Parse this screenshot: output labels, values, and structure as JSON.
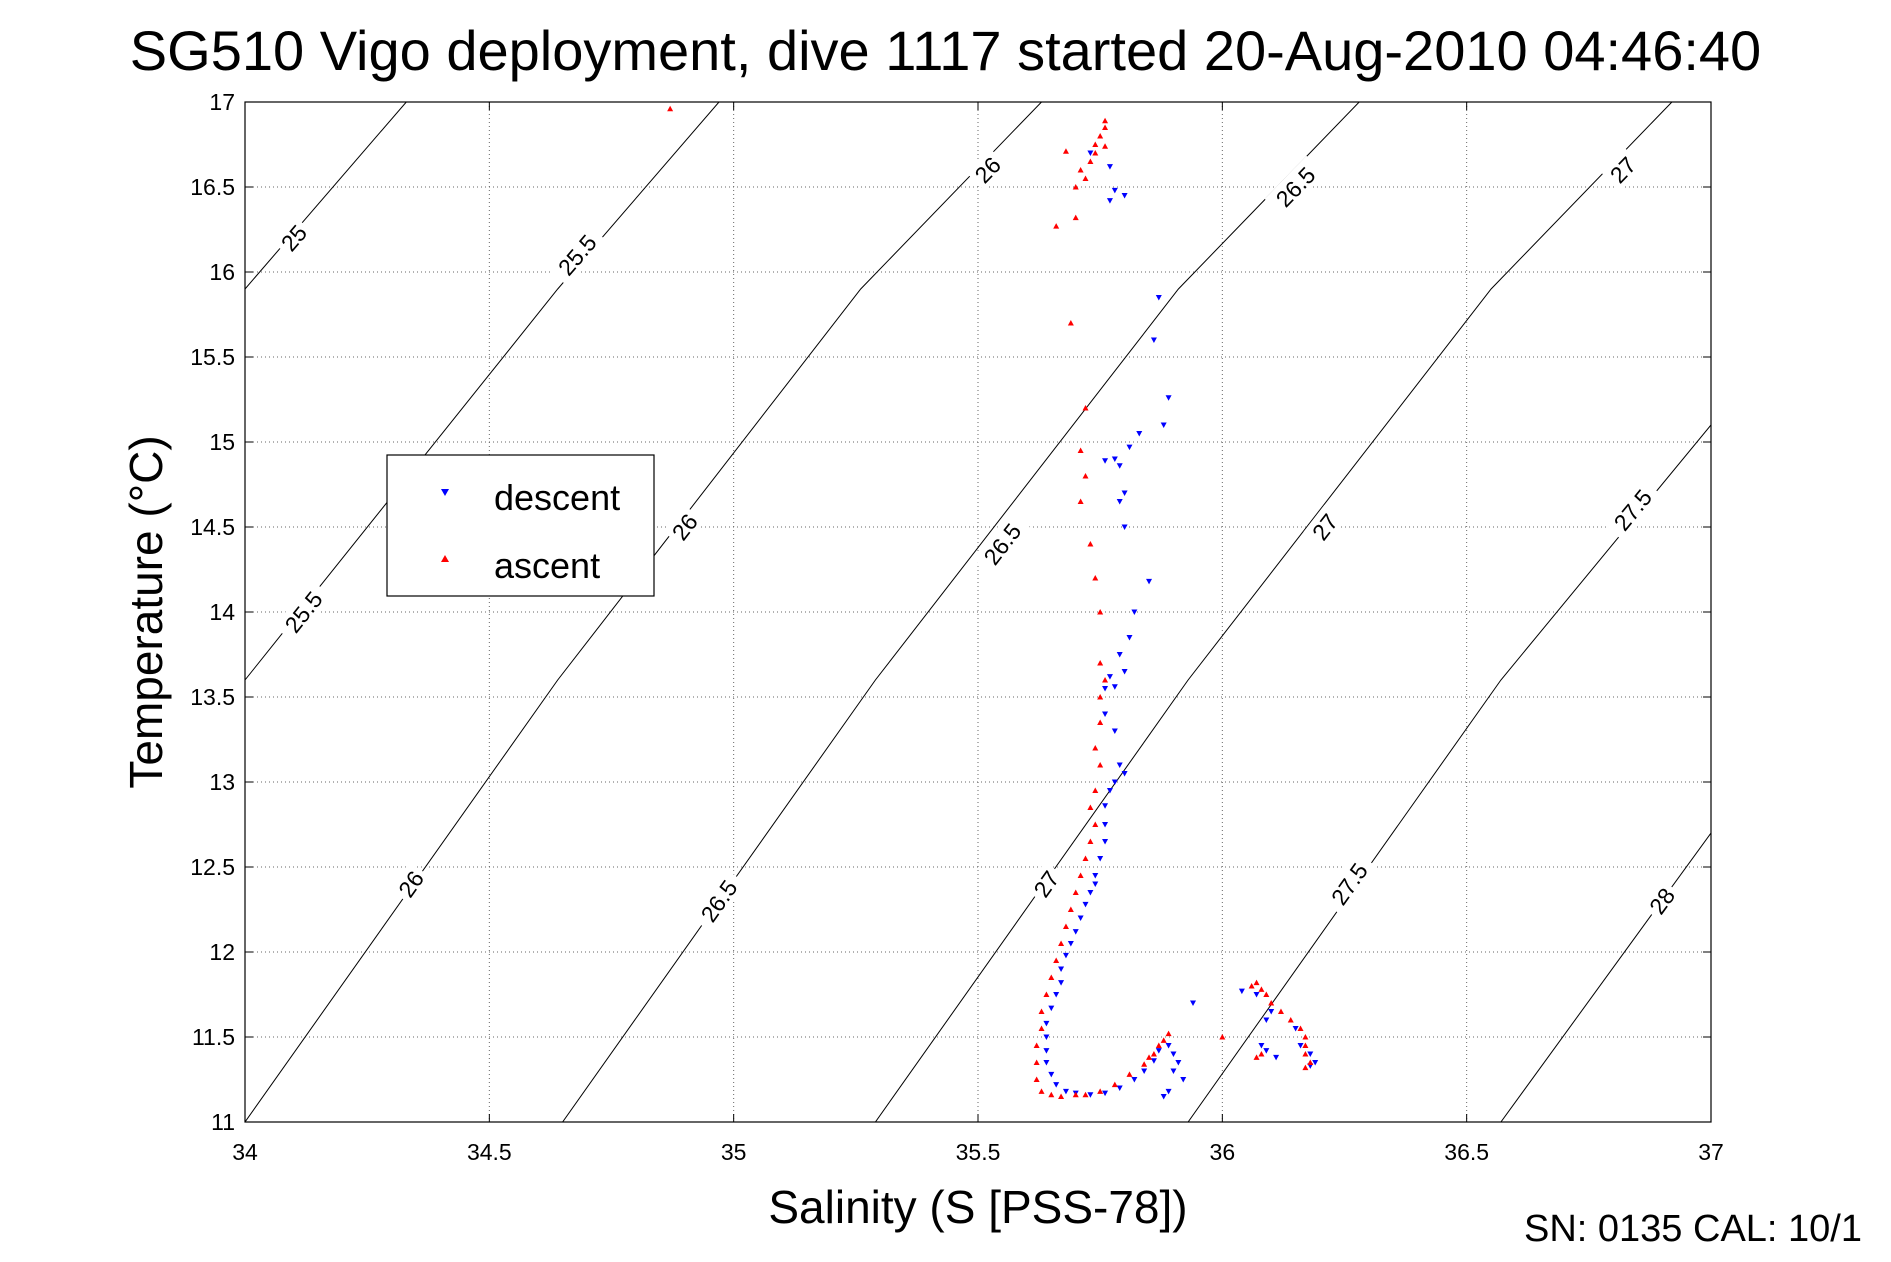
{
  "chart_data": {
    "type": "scatter",
    "title": "SG510 Vigo deployment, dive 1117 started 20-Aug-2010 04:46:40",
    "xlabel": "Salinity (S [PSS-78])",
    "ylabel": "Temperature (°C)",
    "xlim": [
      34,
      37
    ],
    "ylim": [
      11,
      17
    ],
    "x_ticks": [
      "34",
      "34.5",
      "35",
      "35.5",
      "36",
      "36.5",
      "37"
    ],
    "y_ticks": [
      "11",
      "11.5",
      "12",
      "12.5",
      "13",
      "13.5",
      "14",
      "14.5",
      "15",
      "15.5",
      "16",
      "16.5",
      "17"
    ],
    "grid": true,
    "legend_position": "left",
    "density_contours": [
      {
        "label": "25",
        "line": [
          [
            34.0,
            15.9
          ],
          [
            34.33,
            17.0
          ]
        ],
        "label_at": [
          34.1,
          16.2
        ]
      },
      {
        "label": "25.5",
        "line": [
          [
            34.0,
            13.6
          ],
          [
            34.64,
            15.9
          ],
          [
            34.97,
            17.0
          ]
        ],
        "label_at": [
          34.12,
          14.0
        ]
      },
      {
        "label": "25.5",
        "line": [
          [
            34.0,
            13.6
          ],
          [
            34.64,
            15.9
          ],
          [
            34.97,
            17.0
          ]
        ],
        "label_at": [
          34.68,
          16.1
        ]
      },
      {
        "label": "26",
        "line": [
          [
            34.0,
            11.0
          ],
          [
            34.64,
            13.6
          ],
          [
            35.26,
            15.9
          ],
          [
            35.63,
            17.0
          ]
        ],
        "label_at": [
          34.34,
          12.4
        ]
      },
      {
        "label": "26",
        "line": [
          [
            34.0,
            11.0
          ],
          [
            34.64,
            13.6
          ],
          [
            35.26,
            15.9
          ],
          [
            35.63,
            17.0
          ]
        ],
        "label_at": [
          34.9,
          14.5
        ]
      },
      {
        "label": "26",
        "line": [
          [
            34.0,
            11.0
          ],
          [
            34.64,
            13.6
          ],
          [
            35.26,
            15.9
          ],
          [
            35.63,
            17.0
          ]
        ],
        "label_at": [
          35.52,
          16.6
        ]
      },
      {
        "label": "26.5",
        "line": [
          [
            34.65,
            11.0
          ],
          [
            35.29,
            13.6
          ],
          [
            35.91,
            15.9
          ],
          [
            36.28,
            17.0
          ]
        ],
        "label_at": [
          34.97,
          12.3
        ]
      },
      {
        "label": "26.5",
        "line": [
          [
            34.65,
            11.0
          ],
          [
            35.29,
            13.6
          ],
          [
            35.91,
            15.9
          ],
          [
            36.28,
            17.0
          ]
        ],
        "label_at": [
          35.55,
          14.4
        ]
      },
      {
        "label": "26.5",
        "line": [
          [
            34.65,
            11.0
          ],
          [
            35.29,
            13.6
          ],
          [
            35.91,
            15.9
          ],
          [
            36.28,
            17.0
          ]
        ],
        "label_at": [
          36.15,
          16.5
        ]
      },
      {
        "label": "27",
        "line": [
          [
            35.29,
            11.0
          ],
          [
            35.93,
            13.6
          ],
          [
            36.55,
            15.9
          ],
          [
            36.92,
            17.0
          ]
        ],
        "label_at": [
          35.64,
          12.4
        ]
      },
      {
        "label": "27",
        "line": [
          [
            35.29,
            11.0
          ],
          [
            35.93,
            13.6
          ],
          [
            36.55,
            15.9
          ],
          [
            36.92,
            17.0
          ]
        ],
        "label_at": [
          36.21,
          14.5
        ]
      },
      {
        "label": "27",
        "line": [
          [
            35.29,
            11.0
          ],
          [
            35.93,
            13.6
          ],
          [
            36.55,
            15.9
          ],
          [
            36.92,
            17.0
          ]
        ],
        "label_at": [
          36.82,
          16.6
        ]
      },
      {
        "label": "27.5",
        "line": [
          [
            35.93,
            11.0
          ],
          [
            36.57,
            13.6
          ],
          [
            37.0,
            15.1
          ]
        ],
        "label_at": [
          36.26,
          12.4
        ]
      },
      {
        "label": "27.5",
        "line": [
          [
            35.93,
            11.0
          ],
          [
            36.57,
            13.6
          ],
          [
            37.0,
            15.1
          ]
        ],
        "label_at": [
          36.84,
          14.6
        ]
      },
      {
        "label": "28",
        "line": [
          [
            36.57,
            11.0
          ],
          [
            37.0,
            12.7
          ]
        ],
        "label_at": [
          36.9,
          12.3
        ]
      }
    ],
    "series": [
      {
        "name": "descent",
        "color": "#0000ff",
        "marker": "triangle-down",
        "points": [
          [
            35.73,
            16.7
          ],
          [
            35.77,
            16.62
          ],
          [
            35.78,
            16.48
          ],
          [
            35.77,
            16.42
          ],
          [
            35.8,
            16.45
          ],
          [
            35.87,
            15.85
          ],
          [
            35.86,
            15.6
          ],
          [
            35.89,
            15.26
          ],
          [
            35.88,
            15.1
          ],
          [
            35.83,
            15.05
          ],
          [
            35.81,
            14.97
          ],
          [
            35.78,
            14.9
          ],
          [
            35.76,
            14.89
          ],
          [
            35.79,
            14.86
          ],
          [
            35.8,
            14.7
          ],
          [
            35.79,
            14.65
          ],
          [
            35.8,
            14.5
          ],
          [
            35.85,
            14.18
          ],
          [
            35.82,
            14.0
          ],
          [
            35.81,
            13.85
          ],
          [
            35.79,
            13.75
          ],
          [
            35.8,
            13.65
          ],
          [
            35.77,
            13.62
          ],
          [
            35.78,
            13.56
          ],
          [
            35.76,
            13.55
          ],
          [
            35.76,
            13.4
          ],
          [
            35.78,
            13.3
          ],
          [
            35.79,
            13.1
          ],
          [
            35.8,
            13.05
          ],
          [
            35.78,
            13.0
          ],
          [
            35.77,
            12.95
          ],
          [
            35.76,
            12.86
          ],
          [
            35.76,
            12.75
          ],
          [
            35.76,
            12.65
          ],
          [
            35.75,
            12.55
          ],
          [
            35.74,
            12.45
          ],
          [
            35.74,
            12.4
          ],
          [
            35.73,
            12.35
          ],
          [
            35.72,
            12.28
          ],
          [
            35.71,
            12.2
          ],
          [
            35.7,
            12.12
          ],
          [
            35.69,
            12.05
          ],
          [
            35.68,
            11.98
          ],
          [
            35.67,
            11.9
          ],
          [
            35.67,
            11.82
          ],
          [
            35.66,
            11.75
          ],
          [
            35.65,
            11.67
          ],
          [
            35.64,
            11.58
          ],
          [
            35.64,
            11.5
          ],
          [
            35.64,
            11.42
          ],
          [
            35.64,
            11.35
          ],
          [
            35.65,
            11.28
          ],
          [
            35.66,
            11.22
          ],
          [
            35.68,
            11.18
          ],
          [
            35.7,
            11.17
          ],
          [
            35.73,
            11.16
          ],
          [
            35.76,
            11.17
          ],
          [
            35.79,
            11.2
          ],
          [
            35.82,
            11.25
          ],
          [
            35.84,
            11.3
          ],
          [
            35.86,
            11.36
          ],
          [
            35.87,
            11.42
          ],
          [
            35.89,
            11.45
          ],
          [
            35.9,
            11.4
          ],
          [
            35.91,
            11.35
          ],
          [
            35.9,
            11.3
          ],
          [
            35.92,
            11.25
          ],
          [
            35.89,
            11.18
          ],
          [
            35.88,
            11.15
          ],
          [
            35.94,
            11.7
          ],
          [
            36.04,
            11.77
          ],
          [
            36.07,
            11.75
          ],
          [
            36.1,
            11.65
          ],
          [
            36.09,
            11.6
          ],
          [
            36.08,
            11.45
          ],
          [
            36.09,
            11.42
          ],
          [
            36.11,
            11.38
          ],
          [
            36.15,
            11.55
          ],
          [
            36.16,
            11.45
          ],
          [
            36.18,
            11.4
          ],
          [
            36.19,
            11.35
          ],
          [
            36.18,
            11.33
          ]
        ]
      },
      {
        "name": "ascent",
        "color": "#ff0000",
        "marker": "triangle-up",
        "points": [
          [
            34.87,
            16.96
          ],
          [
            35.76,
            16.89
          ],
          [
            35.76,
            16.85
          ],
          [
            35.75,
            16.8
          ],
          [
            35.74,
            16.75
          ],
          [
            35.76,
            16.74
          ],
          [
            35.74,
            16.7
          ],
          [
            35.73,
            16.65
          ],
          [
            35.68,
            16.71
          ],
          [
            35.71,
            16.6
          ],
          [
            35.72,
            16.55
          ],
          [
            35.7,
            16.5
          ],
          [
            35.66,
            16.27
          ],
          [
            35.7,
            16.32
          ],
          [
            35.69,
            15.7
          ],
          [
            35.72,
            15.2
          ],
          [
            35.71,
            14.95
          ],
          [
            35.72,
            14.8
          ],
          [
            35.71,
            14.65
          ],
          [
            35.73,
            14.4
          ],
          [
            35.74,
            14.2
          ],
          [
            35.75,
            14.0
          ],
          [
            35.75,
            13.7
          ],
          [
            35.76,
            13.6
          ],
          [
            35.75,
            13.5
          ],
          [
            35.75,
            13.35
          ],
          [
            35.74,
            13.2
          ],
          [
            35.75,
            13.1
          ],
          [
            35.74,
            12.95
          ],
          [
            35.73,
            12.85
          ],
          [
            35.74,
            12.75
          ],
          [
            35.73,
            12.65
          ],
          [
            35.72,
            12.55
          ],
          [
            35.71,
            12.45
          ],
          [
            35.7,
            12.35
          ],
          [
            35.69,
            12.25
          ],
          [
            35.68,
            12.15
          ],
          [
            35.67,
            12.05
          ],
          [
            35.66,
            11.95
          ],
          [
            35.65,
            11.85
          ],
          [
            35.64,
            11.75
          ],
          [
            35.63,
            11.65
          ],
          [
            35.63,
            11.55
          ],
          [
            35.62,
            11.45
          ],
          [
            35.62,
            11.35
          ],
          [
            35.62,
            11.25
          ],
          [
            35.63,
            11.18
          ],
          [
            35.65,
            11.16
          ],
          [
            35.67,
            11.15
          ],
          [
            35.7,
            11.16
          ],
          [
            35.72,
            11.16
          ],
          [
            35.75,
            11.18
          ],
          [
            35.78,
            11.22
          ],
          [
            35.81,
            11.28
          ],
          [
            35.84,
            11.34
          ],
          [
            35.86,
            11.4
          ],
          [
            35.88,
            11.48
          ],
          [
            35.89,
            11.52
          ],
          [
            35.87,
            11.45
          ],
          [
            35.85,
            11.38
          ],
          [
            36.0,
            11.5
          ],
          [
            36.06,
            11.8
          ],
          [
            36.07,
            11.82
          ],
          [
            36.08,
            11.78
          ],
          [
            36.09,
            11.75
          ],
          [
            36.1,
            11.7
          ],
          [
            36.12,
            11.65
          ],
          [
            36.14,
            11.6
          ],
          [
            36.16,
            11.55
          ],
          [
            36.17,
            11.5
          ],
          [
            36.17,
            11.45
          ],
          [
            36.17,
            11.4
          ],
          [
            36.18,
            11.35
          ],
          [
            36.17,
            11.32
          ],
          [
            36.08,
            11.4
          ],
          [
            36.07,
            11.38
          ]
        ]
      }
    ]
  },
  "footer": {
    "serial_text": "SN: 0135  CAL: 10/1"
  }
}
